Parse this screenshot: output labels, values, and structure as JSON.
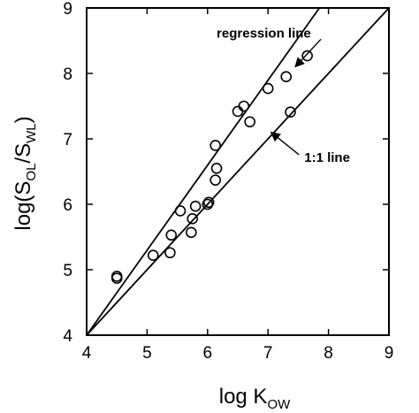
{
  "chart_data": {
    "type": "scatter",
    "xlabel": {
      "main": "log K",
      "sub": "OW"
    },
    "ylabel": {
      "prefix": "log(S",
      "sub1": "OL",
      "mid": "/S",
      "sub2": "WL",
      "suffix": ")"
    },
    "xlim": [
      4,
      9
    ],
    "ylim": [
      4,
      9
    ],
    "xticks": [
      4,
      5,
      6,
      7,
      8,
      9
    ],
    "yticks": [
      4,
      5,
      6,
      7,
      8,
      9
    ],
    "grid": false,
    "legend": "none",
    "points": [
      {
        "x": 4.5,
        "y": 4.9
      },
      {
        "x": 4.5,
        "y": 4.87
      },
      {
        "x": 5.1,
        "y": 5.22
      },
      {
        "x": 5.38,
        "y": 5.26
      },
      {
        "x": 5.4,
        "y": 5.53
      },
      {
        "x": 5.55,
        "y": 5.9
      },
      {
        "x": 5.73,
        "y": 5.57
      },
      {
        "x": 5.75,
        "y": 5.78
      },
      {
        "x": 5.8,
        "y": 5.97
      },
      {
        "x": 6.0,
        "y": 6.0
      },
      {
        "x": 6.02,
        "y": 6.03
      },
      {
        "x": 6.13,
        "y": 6.37
      },
      {
        "x": 6.15,
        "y": 6.55
      },
      {
        "x": 6.13,
        "y": 6.9
      },
      {
        "x": 6.5,
        "y": 7.42
      },
      {
        "x": 6.6,
        "y": 7.5
      },
      {
        "x": 6.7,
        "y": 7.26
      },
      {
        "x": 7.0,
        "y": 7.77
      },
      {
        "x": 7.3,
        "y": 7.95
      },
      {
        "x": 7.37,
        "y": 7.41
      },
      {
        "x": 7.65,
        "y": 8.27
      }
    ],
    "lines": [
      {
        "id": "regression",
        "x": [
          4,
          7.85
        ],
        "y": [
          4,
          9.0
        ]
      },
      {
        "id": "one-to-one",
        "x": [
          4,
          9
        ],
        "y": [
          4,
          9
        ]
      }
    ],
    "annotations": [
      {
        "id": "regression-label",
        "text": "regression line",
        "x": 6.15,
        "y": 8.55,
        "arrow_to": {
          "x": 7.45,
          "y": 8.1
        }
      },
      {
        "id": "one-to-one-label",
        "text": "1:1 line",
        "x": 7.6,
        "y": 6.65,
        "arrow_to": {
          "x": 7.05,
          "y": 7.1
        }
      }
    ]
  }
}
